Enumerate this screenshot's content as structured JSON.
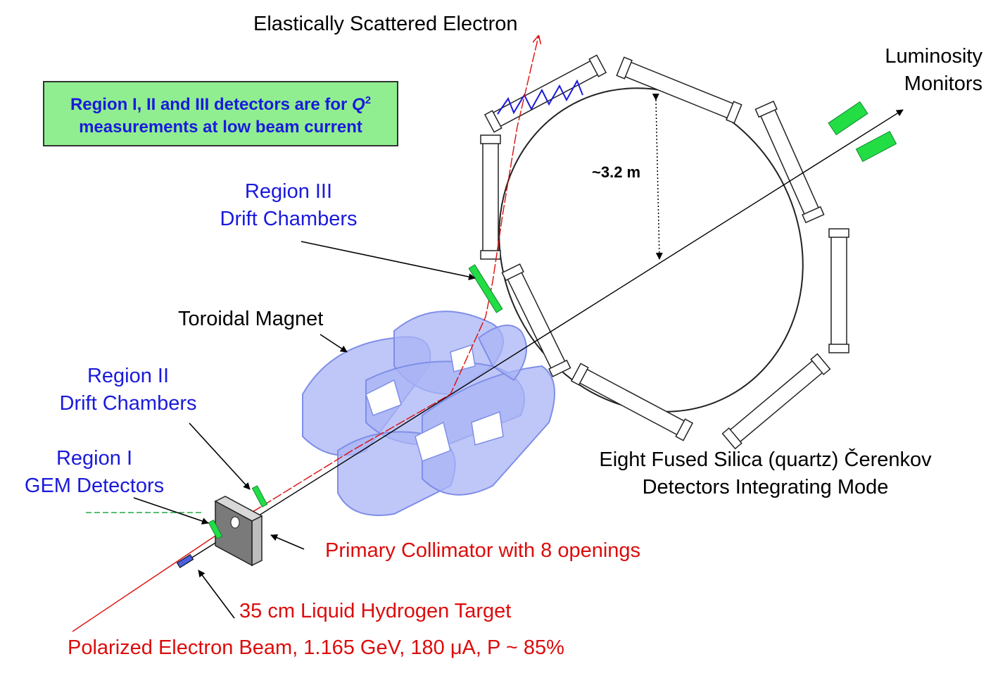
{
  "labels": {
    "elastic_electron": "Elastically Scattered Electron",
    "luminosity_line1": "Luminosity",
    "luminosity_line2": "Monitors",
    "note_line1_pre": "Region I, II and III detectors are for ",
    "note_q": "Q",
    "note_sup": "2",
    "note_line2": "measurements at low beam current",
    "dimension": "~3.2 m",
    "region3_line1": "Region III",
    "region3_line2": "Drift Chambers",
    "toroidal_magnet": "Toroidal Magnet",
    "region2_line1": "Region II",
    "region2_line2": "Drift Chambers",
    "region1_line1": "Region I",
    "region1_line2": "GEM Detectors",
    "cerenkov_line1": "Eight Fused Silica (quartz) Čerenkov",
    "cerenkov_line2": "Detectors Integrating Mode",
    "collimator": "Primary Collimator with 8 openings",
    "target": "35 cm Liquid Hydrogen Target",
    "beam": "Polarized Electron Beam, 1.165 GeV, 180 μA, P ~ 85%"
  },
  "colors": {
    "label_black": "#000000",
    "label_blue": "#1a1adc",
    "label_red": "#dc0c0c",
    "note_bg": "#90ee90",
    "detector_green": "#22dd44",
    "magnet_blue": "#a9b4f5"
  }
}
